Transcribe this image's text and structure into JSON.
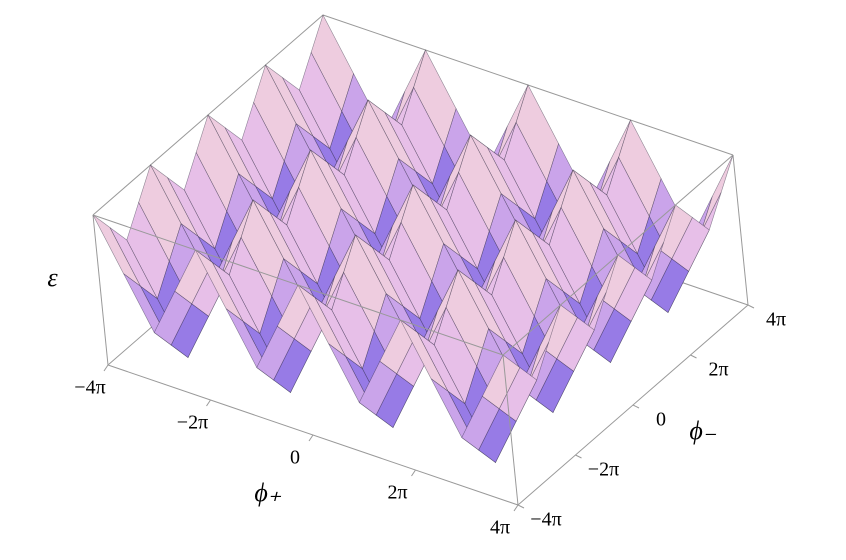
{
  "chart_data": {
    "type": "surface",
    "xlabel": "ϕ₊",
    "ylabel": "ϕ₋",
    "zlabel": "ε",
    "x": [
      -12.566,
      -10.996,
      -9.425,
      -7.854,
      -6.283,
      -4.712,
      -3.142,
      -1.571,
      0,
      1.571,
      3.142,
      4.712,
      6.283,
      7.854,
      9.425,
      10.996,
      12.566
    ],
    "y": [
      -12.566,
      -10.996,
      -9.425,
      -7.854,
      -6.283,
      -4.712,
      -3.142,
      -1.571,
      0,
      1.571,
      3.142,
      4.712,
      6.283,
      7.854,
      9.425,
      10.996,
      12.566
    ],
    "z": [
      [
        1.5,
        0.5,
        -0.5,
        0.5,
        1.5,
        0.5,
        -0.5,
        0.5,
        1.5,
        0.5,
        -0.5,
        0.5,
        1.5,
        0.5,
        -0.5,
        0.5,
        1.5
      ],
      [
        1,
        0,
        -1,
        0,
        1,
        0,
        -1,
        0,
        1,
        0,
        -1,
        0,
        1,
        0,
        -1,
        0,
        1
      ],
      [
        0.5,
        -0.5,
        -1.5,
        -0.5,
        0.5,
        -0.5,
        -1.5,
        -0.5,
        0.5,
        -0.5,
        -1.5,
        -0.5,
        0.5,
        -0.5,
        -1.5,
        -0.5,
        0.5
      ],
      [
        1,
        0,
        -1,
        0,
        1,
        0,
        -1,
        0,
        1,
        0,
        -1,
        0,
        1,
        0,
        -1,
        0,
        1
      ],
      [
        1.5,
        0.5,
        -0.5,
        0.5,
        1.5,
        0.5,
        -0.5,
        0.5,
        1.5,
        0.5,
        -0.5,
        0.5,
        1.5,
        0.5,
        -0.5,
        0.5,
        1.5
      ],
      [
        1,
        0,
        -1,
        0,
        1,
        0,
        -1,
        0,
        1,
        0,
        -1,
        0,
        1,
        0,
        -1,
        0,
        1
      ],
      [
        0.5,
        -0.5,
        -1.5,
        -0.5,
        0.5,
        -0.5,
        -1.5,
        -0.5,
        0.5,
        -0.5,
        -1.5,
        -0.5,
        0.5,
        -0.5,
        -1.5,
        -0.5,
        0.5
      ],
      [
        1,
        0,
        -1,
        0,
        1,
        0,
        -1,
        0,
        1,
        0,
        -1,
        0,
        1,
        0,
        -1,
        0,
        1
      ],
      [
        1.5,
        0.5,
        -0.5,
        0.5,
        1.5,
        0.5,
        -0.5,
        0.5,
        1.5,
        0.5,
        -0.5,
        0.5,
        1.5,
        0.5,
        -0.5,
        0.5,
        1.5
      ],
      [
        1,
        0,
        -1,
        0,
        1,
        0,
        -1,
        0,
        1,
        0,
        -1,
        0,
        1,
        0,
        -1,
        0,
        1
      ],
      [
        0.5,
        -0.5,
        -1.5,
        -0.5,
        0.5,
        -0.5,
        -1.5,
        -0.5,
        0.5,
        -0.5,
        -1.5,
        -0.5,
        0.5,
        -0.5,
        -1.5,
        -0.5,
        0.5
      ],
      [
        1,
        0,
        -1,
        0,
        1,
        0,
        -1,
        0,
        1,
        0,
        -1,
        0,
        1,
        0,
        -1,
        0,
        1
      ],
      [
        1.5,
        0.5,
        -0.5,
        0.5,
        1.5,
        0.5,
        -0.5,
        0.5,
        1.5,
        0.5,
        -0.5,
        0.5,
        1.5,
        0.5,
        -0.5,
        0.5,
        1.5
      ],
      [
        1,
        0,
        -1,
        0,
        1,
        0,
        -1,
        0,
        1,
        0,
        -1,
        0,
        1,
        0,
        -1,
        0,
        1
      ],
      [
        0.5,
        -0.5,
        -1.5,
        -0.5,
        0.5,
        -0.5,
        -1.5,
        -0.5,
        0.5,
        -0.5,
        -1.5,
        -0.5,
        0.5,
        -0.5,
        -1.5,
        -0.5,
        0.5
      ],
      [
        1,
        0,
        -1,
        0,
        1,
        0,
        -1,
        0,
        1,
        0,
        -1,
        0,
        1,
        0,
        -1,
        0,
        1
      ],
      [
        1.5,
        0.5,
        -0.5,
        0.5,
        1.5,
        0.5,
        -0.5,
        0.5,
        1.5,
        0.5,
        -0.5,
        0.5,
        1.5,
        0.5,
        -0.5,
        0.5,
        1.5
      ]
    ],
    "xlim": [
      -12.566,
      12.566
    ],
    "ylim": [
      -12.566,
      12.566
    ],
    "zlim": [
      -1.5,
      1.5
    ],
    "xticks": [
      {
        "value": -12.566,
        "label": "−4π"
      },
      {
        "value": -6.283,
        "label": "−2π"
      },
      0,
      {
        "value": 6.283,
        "label": "2π"
      },
      {
        "value": 12.566,
        "label": "4π"
      }
    ],
    "yticks": [
      {
        "value": -12.566,
        "label": "−4π"
      },
      {
        "value": -6.283,
        "label": "−2π"
      },
      0,
      {
        "value": 6.283,
        "label": "2π"
      },
      {
        "value": 12.566,
        "label": "4π"
      }
    ],
    "colormap": [
      "#4a3ee0",
      "#e3b8ec",
      "#f9e0d2"
    ]
  }
}
